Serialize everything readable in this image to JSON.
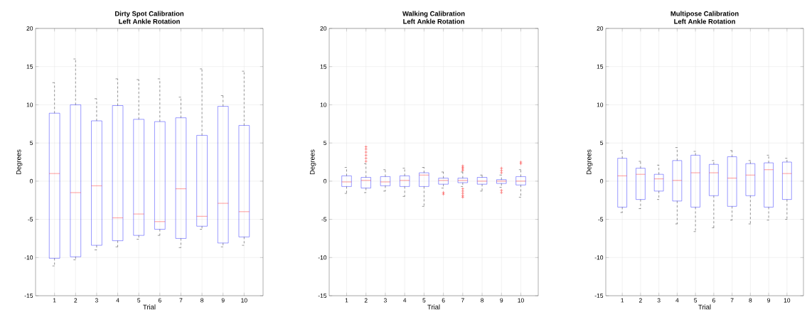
{
  "chart_data": [
    {
      "type": "box",
      "title": "Dirty Spot Calibration",
      "subtitle": "Left Ankle Rotation",
      "xlabel": "Trial",
      "ylabel": "Degrees",
      "categories": [
        "1",
        "2",
        "3",
        "4",
        "5",
        "6",
        "7",
        "8",
        "9",
        "10"
      ],
      "ylim": [
        -15,
        20
      ],
      "yticks": [
        -15,
        -10,
        -5,
        0,
        5,
        10,
        15,
        20
      ],
      "grid": true,
      "boxes": [
        {
          "low": -11.1,
          "q1": -10.1,
          "median": 1.0,
          "q3": 8.9,
          "high": 12.9
        },
        {
          "low": -10.3,
          "q1": -9.9,
          "median": -1.5,
          "q3": 10.0,
          "high": 16.0
        },
        {
          "low": -9.0,
          "q1": -8.4,
          "median": -0.6,
          "q3": 7.9,
          "high": 10.8
        },
        {
          "low": -8.6,
          "q1": -7.8,
          "median": -4.8,
          "q3": 9.9,
          "high": 13.4
        },
        {
          "low": -7.6,
          "q1": -7.1,
          "median": -4.3,
          "q3": 8.1,
          "high": 13.3
        },
        {
          "low": -7.1,
          "q1": -6.3,
          "median": -5.3,
          "q3": 7.8,
          "high": 13.4
        },
        {
          "low": -8.7,
          "q1": -7.5,
          "median": -1.0,
          "q3": 8.3,
          "high": 11.0
        },
        {
          "low": -6.3,
          "q1": -5.9,
          "median": -4.6,
          "q3": 6.0,
          "high": 14.7
        },
        {
          "low": -8.6,
          "q1": -8.1,
          "median": -2.9,
          "q3": 9.8,
          "high": 11.2
        },
        {
          "low": -8.4,
          "q1": -7.3,
          "median": -4.0,
          "q3": 7.3,
          "high": 14.4
        }
      ]
    },
    {
      "type": "box",
      "title": "Walking Calibration",
      "subtitle": "Left Ankle Rotation",
      "xlabel": "Trial",
      "ylabel": "Degrees",
      "categories": [
        "1",
        "2",
        "3",
        "4",
        "5",
        "6",
        "7",
        "8",
        "9",
        "10"
      ],
      "ylim": [
        -15,
        20
      ],
      "yticks": [
        -15,
        -10,
        -5,
        0,
        5,
        10,
        15,
        20
      ],
      "grid": true,
      "boxes": [
        {
          "low": -1.6,
          "q1": -0.7,
          "median": -0.1,
          "q3": 0.7,
          "high": 1.8
        },
        {
          "low": -1.5,
          "q1": -0.9,
          "median": 0.1,
          "q3": 0.5,
          "high": 2.3,
          "outliers": [
            2.6,
            3.0,
            3.4,
            3.8,
            4.2,
            4.5
          ]
        },
        {
          "low": -1.3,
          "q1": -0.6,
          "median": -0.1,
          "q3": 0.6,
          "high": 1.5
        },
        {
          "low": -2.0,
          "q1": -0.7,
          "median": 0.1,
          "q3": 0.7,
          "high": 1.7
        },
        {
          "low": -3.3,
          "q1": -0.7,
          "median": 0.8,
          "q3": 1.1,
          "high": 1.8
        },
        {
          "low": -0.9,
          "q1": -0.4,
          "median": 0.1,
          "q3": 0.4,
          "high": 1.2,
          "outliers": [
            -1.5,
            -1.7
          ]
        },
        {
          "low": -0.7,
          "q1": -0.2,
          "median": 0.1,
          "q3": 0.4,
          "high": 1.2,
          "outliers": [
            1.4,
            1.6,
            1.8,
            2.0,
            -1.0,
            -1.3,
            -1.6,
            -1.9,
            -2.1
          ]
        },
        {
          "low": -1.3,
          "q1": -0.4,
          "median": 0.0,
          "q3": 0.5,
          "high": 0.8
        },
        {
          "low": -0.8,
          "q1": -0.3,
          "median": 0.0,
          "q3": 0.2,
          "high": 0.8,
          "outliers": [
            1.1,
            1.4,
            1.7,
            -1.2,
            -1.5
          ]
        },
        {
          "low": -2.1,
          "q1": -0.5,
          "median": 0.0,
          "q3": 0.6,
          "high": 1.5,
          "outliers": [
            2.3,
            2.5
          ]
        }
      ]
    },
    {
      "type": "box",
      "title": "Multipose Calibration",
      "subtitle": "Left Ankle Rotation",
      "xlabel": "Trial",
      "ylabel": "Degrees",
      "categories": [
        "1",
        "2",
        "3",
        "4",
        "5",
        "6",
        "7",
        "8",
        "9",
        "10"
      ],
      "ylim": [
        -15,
        20
      ],
      "yticks": [
        -15,
        -10,
        -5,
        0,
        5,
        10,
        15,
        20
      ],
      "grid": true,
      "boxes": [
        {
          "low": -4.1,
          "q1": -3.4,
          "median": 0.7,
          "q3": 3.0,
          "high": 4.0
        },
        {
          "low": -3.6,
          "q1": -2.4,
          "median": 0.9,
          "q3": 1.7,
          "high": 2.6
        },
        {
          "low": -2.4,
          "q1": -1.3,
          "median": 0.3,
          "q3": 0.9,
          "high": 2.1
        },
        {
          "low": -5.6,
          "q1": -2.6,
          "median": 0.1,
          "q3": 2.7,
          "high": 4.4
        },
        {
          "low": -6.6,
          "q1": -3.4,
          "median": 1.1,
          "q3": 3.4,
          "high": 3.9
        },
        {
          "low": -6.1,
          "q1": -1.9,
          "median": 1.1,
          "q3": 2.2,
          "high": 2.7
        },
        {
          "low": -5.1,
          "q1": -3.3,
          "median": 0.4,
          "q3": 3.2,
          "high": 4.0
        },
        {
          "low": -5.6,
          "q1": -1.9,
          "median": 0.8,
          "q3": 2.3,
          "high": 2.7
        },
        {
          "low": -5.1,
          "q1": -3.4,
          "median": 1.5,
          "q3": 2.4,
          "high": 3.4
        },
        {
          "low": -5.0,
          "q1": -2.4,
          "median": 1.0,
          "q3": 2.5,
          "high": 3.0
        }
      ]
    }
  ]
}
